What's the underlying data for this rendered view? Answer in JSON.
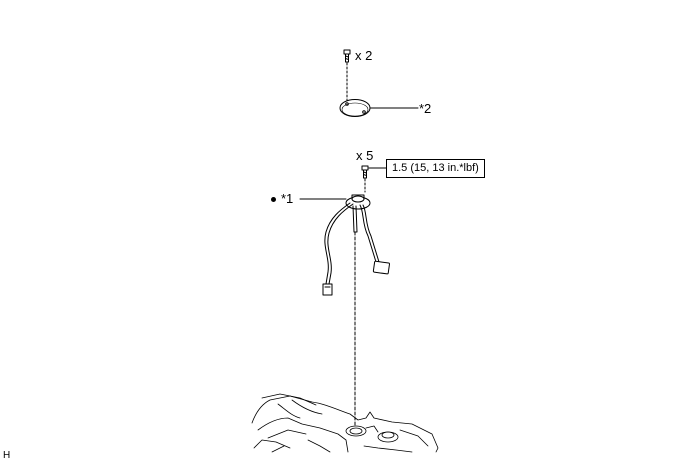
{
  "labels": {
    "top_bolt_qty": "x 2",
    "cover_callout": "*2",
    "mid_bolt_qty": "x 5",
    "torque_spec": "1.5 (15, 13 in.*lbf)",
    "sender_callout": "*1",
    "figure_code": "H"
  },
  "icons": {
    "non_reusable_mark": "bullet-dot-icon"
  }
}
